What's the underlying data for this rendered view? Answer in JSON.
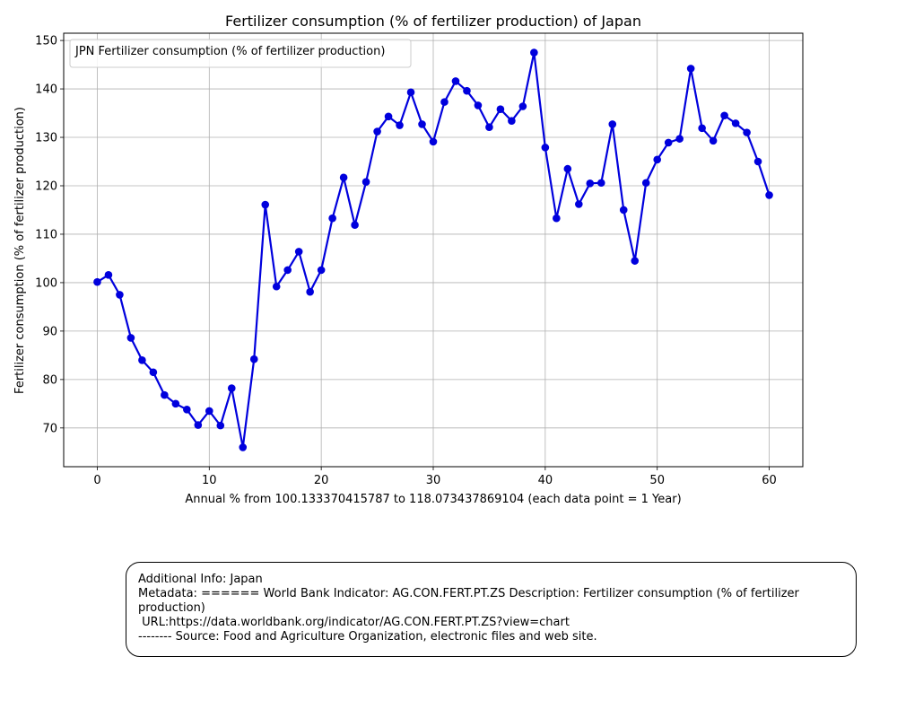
{
  "chart_data": {
    "type": "line",
    "title": "Fertilizer consumption (% of fertilizer production) of Japan",
    "xlabel": "Annual % from 100.133370415787 to 118.073437869104 (each data point = 1 Year)",
    "ylabel": "Fertilizer consumption (% of fertilizer production)",
    "legend": "JPN Fertilizer consumption (% of fertilizer production)",
    "legend_position": "top-left",
    "grid": true,
    "xlim": [
      -3,
      63
    ],
    "ylim": [
      62,
      151.5
    ],
    "xticks": [
      0,
      10,
      20,
      30,
      40,
      50,
      60
    ],
    "yticks": [
      70,
      80,
      90,
      100,
      110,
      120,
      130,
      140,
      150
    ],
    "series": [
      {
        "name": "JPN Fertilizer consumption (% of fertilizer production)",
        "color": "#0000dd",
        "x": [
          0,
          1,
          2,
          3,
          4,
          5,
          6,
          7,
          8,
          9,
          10,
          11,
          12,
          13,
          14,
          15,
          16,
          17,
          18,
          19,
          20,
          21,
          22,
          23,
          24,
          25,
          26,
          27,
          28,
          29,
          30,
          31,
          32,
          33,
          34,
          35,
          36,
          37,
          38,
          39,
          40,
          41,
          42,
          43,
          44,
          45,
          46,
          47,
          48,
          49,
          50,
          51,
          52,
          53,
          54,
          55,
          56,
          57,
          58,
          59,
          60
        ],
        "values": [
          100.13,
          101.6,
          97.5,
          88.6,
          84.0,
          81.5,
          76.8,
          75.0,
          73.8,
          70.6,
          73.5,
          70.5,
          78.2,
          66.0,
          84.2,
          116.1,
          99.2,
          102.6,
          106.4,
          98.1,
          102.6,
          113.3,
          121.7,
          111.9,
          120.8,
          131.2,
          134.3,
          132.5,
          139.3,
          132.7,
          129.1,
          137.3,
          141.6,
          139.6,
          136.6,
          132.1,
          135.8,
          133.4,
          136.4,
          147.5,
          127.9,
          113.3,
          123.5,
          116.2,
          120.5,
          120.6,
          132.7,
          115.0,
          104.5,
          120.6,
          125.4,
          128.9,
          129.7,
          144.2,
          131.9,
          129.3,
          134.5,
          132.9,
          131.0,
          125.0,
          118.07
        ]
      }
    ]
  },
  "info_box": {
    "line1": "Additional Info: Japan",
    "line2": "Metadata: ====== World Bank Indicator: AG.CON.FERT.PT.ZS Description: Fertilizer consumption (% of fertilizer production)",
    "line3": " URL:https://data.worldbank.org/indicator/AG.CON.FERT.PT.ZS?view=chart",
    "line4": "-------- Source: Food and Agriculture Organization, electronic files and web site."
  }
}
